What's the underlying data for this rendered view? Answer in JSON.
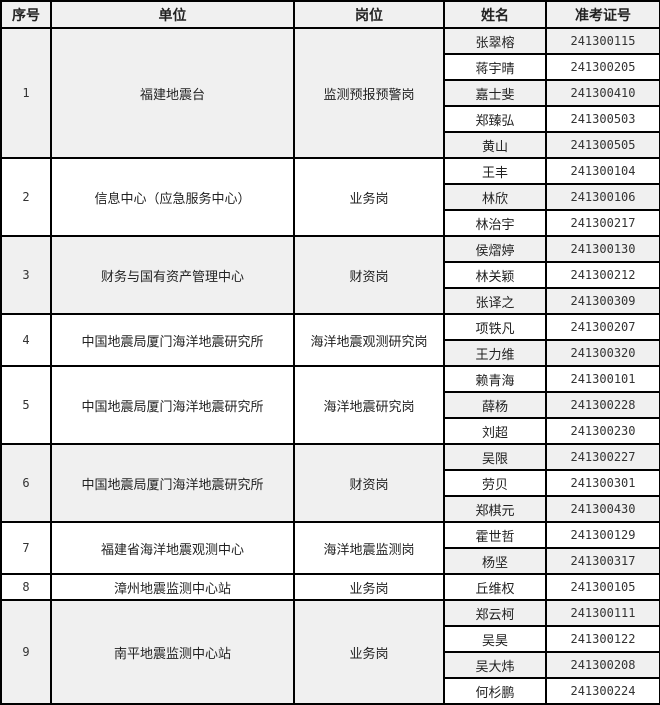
{
  "headers": [
    "序号",
    "单位",
    "岗位",
    "姓名",
    "准考证号"
  ],
  "groups": [
    {
      "no": "1",
      "unit": "福建地震台",
      "post": "监测预报预警岗",
      "shaded": true,
      "people": [
        [
          "张翠榕",
          "241300115"
        ],
        [
          "蒋宇晴",
          "241300205"
        ],
        [
          "嘉士斐",
          "241300410"
        ],
        [
          "郑臻弘",
          "241300503"
        ],
        [
          "黄山",
          "241300505"
        ]
      ]
    },
    {
      "no": "2",
      "unit": "信息中心（应急服务中心）",
      "post": "业务岗",
      "shaded": false,
      "people": [
        [
          "王丰",
          "241300104"
        ],
        [
          "林欣",
          "241300106"
        ],
        [
          "林治宇",
          "241300217"
        ]
      ]
    },
    {
      "no": "3",
      "unit": "财务与国有资产管理中心",
      "post": "财资岗",
      "shaded": true,
      "people": [
        [
          "侯熠婷",
          "241300130"
        ],
        [
          "林关颖",
          "241300212"
        ],
        [
          "张译之",
          "241300309"
        ]
      ]
    },
    {
      "no": "4",
      "unit": "中国地震局厦门海洋地震研究所",
      "post": "海洋地震观测研究岗",
      "shaded": false,
      "people": [
        [
          "项铁凡",
          "241300207"
        ],
        [
          "王力维",
          "241300320"
        ]
      ]
    },
    {
      "no": "5",
      "unit": "中国地震局厦门海洋地震研究所",
      "post": "海洋地震研究岗",
      "shaded": false,
      "people": [
        [
          "赖青海",
          "241300101"
        ],
        [
          "薛杨",
          "241300228"
        ],
        [
          "刘超",
          "241300230"
        ]
      ]
    },
    {
      "no": "6",
      "unit": "中国地震局厦门海洋地震研究所",
      "post": "财资岗",
      "shaded": true,
      "people": [
        [
          "吴限",
          "241300227"
        ],
        [
          "劳贝",
          "241300301"
        ],
        [
          "郑棋元",
          "241300430"
        ]
      ]
    },
    {
      "no": "7",
      "unit": "福建省海洋地震观测中心",
      "post": "海洋地震监测岗",
      "shaded": false,
      "people": [
        [
          "霍世哲",
          "241300129"
        ],
        [
          "杨坚",
          "241300317"
        ]
      ]
    },
    {
      "no": "8",
      "unit": "漳州地震监测中心站",
      "post": "业务岗",
      "shaded": false,
      "people": [
        [
          "丘维权",
          "241300105"
        ]
      ]
    },
    {
      "no": "9",
      "unit": "南平地震监测中心站",
      "post": "业务岗",
      "shaded": true,
      "people": [
        [
          "郑云柯",
          "241300111"
        ],
        [
          "吴昊",
          "241300122"
        ],
        [
          "吴大炜",
          "241300208"
        ],
        [
          "何杉鹏",
          "241300224"
        ]
      ]
    }
  ]
}
